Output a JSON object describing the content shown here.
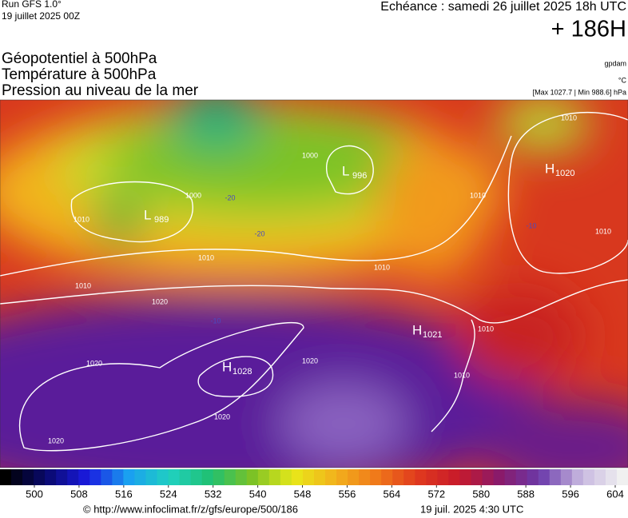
{
  "header": {
    "run": "Run GFS 1.0°",
    "date": "19 juillet 2025 00Z",
    "forecast": "Echéance : samedi 26 juillet 2025 18h UTC",
    "lead": "+ 186H"
  },
  "layers": [
    {
      "label": "Géopotentiel à 500hPa",
      "unit": "gpdam"
    },
    {
      "label": "Température à 500hPa",
      "unit": "°C"
    },
    {
      "label": "Pression au niveau de la mer",
      "unit": "[Max 1027.7 | Min 988.6] hPa"
    }
  ],
  "pressure_centers": [
    {
      "kind": "H",
      "value": "1020"
    },
    {
      "kind": "L",
      "value": "996"
    },
    {
      "kind": "L",
      "value": "989"
    },
    {
      "kind": "H",
      "value": "1028"
    },
    {
      "kind": "H",
      "value": "1021"
    }
  ],
  "isobar_labels": [
    "1010",
    "1000",
    "1000",
    "1010",
    "1010",
    "1010",
    "1010",
    "1020",
    "1020",
    "1020",
    "1020",
    "1020",
    "1010",
    "1010",
    "1010",
    "1010"
  ],
  "temperature_labels": [
    "-20",
    "-20",
    "-10",
    "-10"
  ],
  "colorbar": {
    "ticks": [
      500,
      508,
      516,
      524,
      532,
      540,
      548,
      556,
      564,
      572,
      580,
      588,
      596,
      604
    ]
  },
  "footer": {
    "source": "© http://www.infoclimat.fr/z/gfs/europe/500/186",
    "timestamp": "19 juil. 2025  4:30 UTC"
  }
}
